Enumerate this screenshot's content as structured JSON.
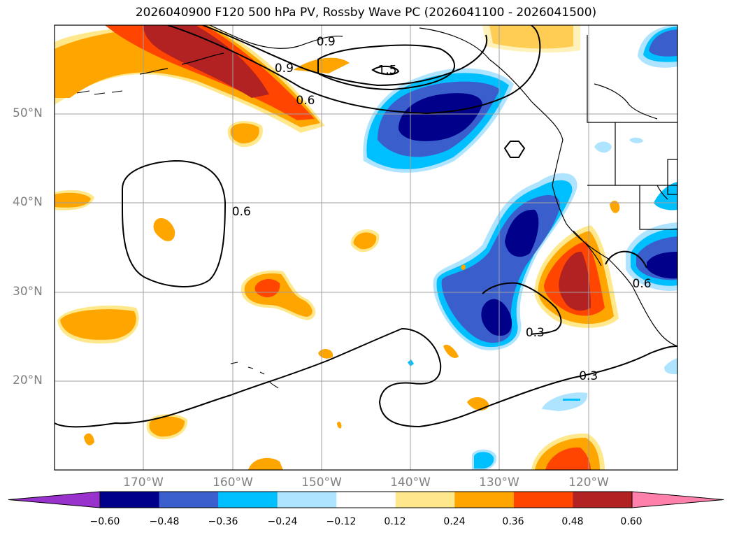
{
  "title": "2026040900 F120 500 hPa PV, Rossby Wave PC (2026041100 - 2026041500)",
  "map": {
    "projection": "equirectangular",
    "lon_range": [
      -180,
      -110
    ],
    "lat_range": [
      10,
      60
    ],
    "lat_ticks": [
      {
        "value": 50,
        "label": "50°N"
      },
      {
        "value": 40,
        "label": "40°N"
      },
      {
        "value": 30,
        "label": "30°N"
      },
      {
        "value": 20,
        "label": "20°N"
      }
    ],
    "lon_ticks": [
      {
        "value": -170,
        "label": "170°W"
      },
      {
        "value": -160,
        "label": "160°W"
      },
      {
        "value": -150,
        "label": "150°W"
      },
      {
        "value": -140,
        "label": "140°W"
      },
      {
        "value": -130,
        "label": "130°W"
      },
      {
        "value": -120,
        "label": "120°W"
      }
    ],
    "contour_labels": [
      {
        "text": "0.9",
        "lon": -149.5,
        "lat": 58.2
      },
      {
        "text": "0.9",
        "lon": -154.2,
        "lat": 55.2
      },
      {
        "text": "1.5",
        "lon": -142.6,
        "lat": 55.0
      },
      {
        "text": "0.6",
        "lon": -151.8,
        "lat": 51.6
      },
      {
        "text": "0.6",
        "lon": -159.0,
        "lat": 39.1
      },
      {
        "text": "0.6",
        "lon": -114.0,
        "lat": 31.0
      },
      {
        "text": "0.3",
        "lon": -126.0,
        "lat": 25.5
      },
      {
        "text": "0.3",
        "lon": -120.0,
        "lat": 20.6
      }
    ]
  },
  "colorbar": {
    "colors": [
      "#9932cc",
      "#00008b",
      "#3a5fcd",
      "#00bfff",
      "#aee4ff",
      "#ffffff",
      "#ffe88c",
      "#ffa500",
      "#ff4500",
      "#b22222",
      "#ff80aa"
    ],
    "ticks": [
      "−0.60",
      "−0.48",
      "−0.36",
      "−0.24",
      "−0.12",
      "0.12",
      "0.24",
      "0.36",
      "0.48",
      "0.60"
    ]
  },
  "colors": {
    "contour": "#000000",
    "grid": "#a0a0a0",
    "tick_label": "#808080"
  }
}
